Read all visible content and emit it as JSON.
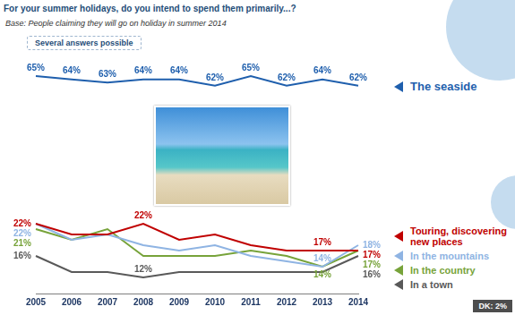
{
  "header": {
    "title": "For your summer holidays, do you intend to spend them primarily...?",
    "subtitle": "Base: People claiming they will go on holiday in summer 2014",
    "note": "Several answers possible"
  },
  "chart_data": [
    {
      "type": "line",
      "categories": [
        "2005",
        "2006",
        "2007",
        "2008",
        "2009",
        "2010",
        "2011",
        "2012",
        "2013",
        "2014"
      ],
      "series": [
        {
          "name": "The seaside",
          "color": "#1f5fad",
          "values": [
            65,
            64,
            63,
            64,
            64,
            62,
            65,
            62,
            64,
            62
          ],
          "value_labels": [
            "65%",
            "64%",
            "63%",
            "64%",
            "64%",
            "62%",
            "65%",
            "62%",
            "64%",
            "62%"
          ]
        }
      ],
      "ylim": [
        58,
        67
      ],
      "grid": false,
      "tick_labels": false,
      "data_labels": true,
      "legend": "right"
    },
    {
      "type": "line",
      "categories": [
        "2005",
        "2006",
        "2007",
        "2008",
        "2009",
        "2010",
        "2011",
        "2012",
        "2013",
        "2014"
      ],
      "series": [
        {
          "name": "Touring, discovering new places",
          "color": "#c00000",
          "values": [
            22,
            20,
            20,
            22,
            19,
            20,
            18,
            17,
            17,
            17
          ],
          "value_labels": [
            "22%",
            null,
            null,
            "22%",
            null,
            null,
            null,
            null,
            "17%",
            "17%"
          ]
        },
        {
          "name": "In the mountains",
          "color": "#8fb4e3",
          "values": [
            22,
            19,
            20,
            18,
            17,
            18,
            16,
            15,
            14,
            18
          ],
          "value_labels": [
            "22%",
            null,
            null,
            null,
            null,
            null,
            null,
            null,
            "14%",
            "18%"
          ]
        },
        {
          "name": "In the country",
          "color": "#77a33a",
          "values": [
            21,
            19,
            21,
            16,
            16,
            16,
            17,
            16,
            14,
            17
          ],
          "value_labels": [
            "21%",
            null,
            null,
            null,
            null,
            null,
            null,
            null,
            "14%",
            "17%"
          ]
        },
        {
          "name": "In a town",
          "color": "#595959",
          "values": [
            16,
            13,
            13,
            12,
            13,
            13,
            13,
            13,
            13,
            16
          ],
          "value_labels": [
            "16%",
            null,
            null,
            "12%",
            null,
            null,
            null,
            null,
            null,
            "16%"
          ]
        }
      ],
      "ylim": [
        9,
        24
      ],
      "grid": false,
      "tick_labels": "x",
      "data_labels": true,
      "legend": "right"
    }
  ],
  "footer": {
    "note": "DK: 2%"
  }
}
